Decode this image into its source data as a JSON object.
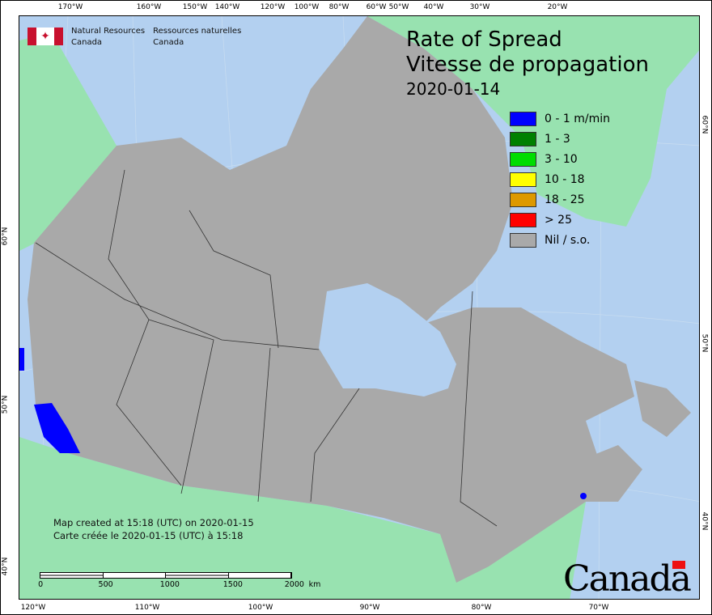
{
  "header": {
    "org_en_line1": "Natural Resources",
    "org_en_line2": "Canada",
    "org_fr_line1": "Ressources naturelles",
    "org_fr_line2": "Canada"
  },
  "title": {
    "en": "Rate of Spread",
    "fr": "Vitesse de propagation",
    "date": "2020-01-14"
  },
  "legend": [
    {
      "label": "0 - 1 m/min",
      "color": "#0000ff"
    },
    {
      "label": "1 - 3",
      "color": "#008000"
    },
    {
      "label": "3 - 10",
      "color": "#00dd00"
    },
    {
      "label": "10 - 18",
      "color": "#ffff00"
    },
    {
      "label": "18 - 25",
      "color": "#dd9900"
    },
    {
      "label": "> 25",
      "color": "#ff0000"
    },
    {
      "label": "Nil / s.o.",
      "color": "#a9a9a9"
    }
  ],
  "colors": {
    "ocean": "#b3d0f0",
    "canada_land": "#a9a9a9",
    "other_land": "#98e2b0"
  },
  "note": {
    "en": "Map created at 15:18 (UTC) on 2020-01-15",
    "fr": "Carte créée le 2020-01-15 (UTC) à 15:18"
  },
  "scale_bar": {
    "labels": [
      "0",
      "500",
      "1000",
      "1500",
      "2000"
    ],
    "unit": "km"
  },
  "ticks": {
    "top": [
      "170°W",
      "160°W",
      "150°W",
      "140°W",
      "120°W",
      "100°W",
      "80°W",
      "60°W",
      "50°W",
      "40°W",
      "30°W",
      "20°W"
    ],
    "bottom": [
      "120°W",
      "110°W",
      "100°W",
      "90°W",
      "80°W",
      "70°W"
    ],
    "left": [
      "60°N",
      "50°N",
      "40°N"
    ],
    "right": [
      "60°N",
      "50°N",
      "40°N"
    ]
  },
  "wordmark": "Canada"
}
